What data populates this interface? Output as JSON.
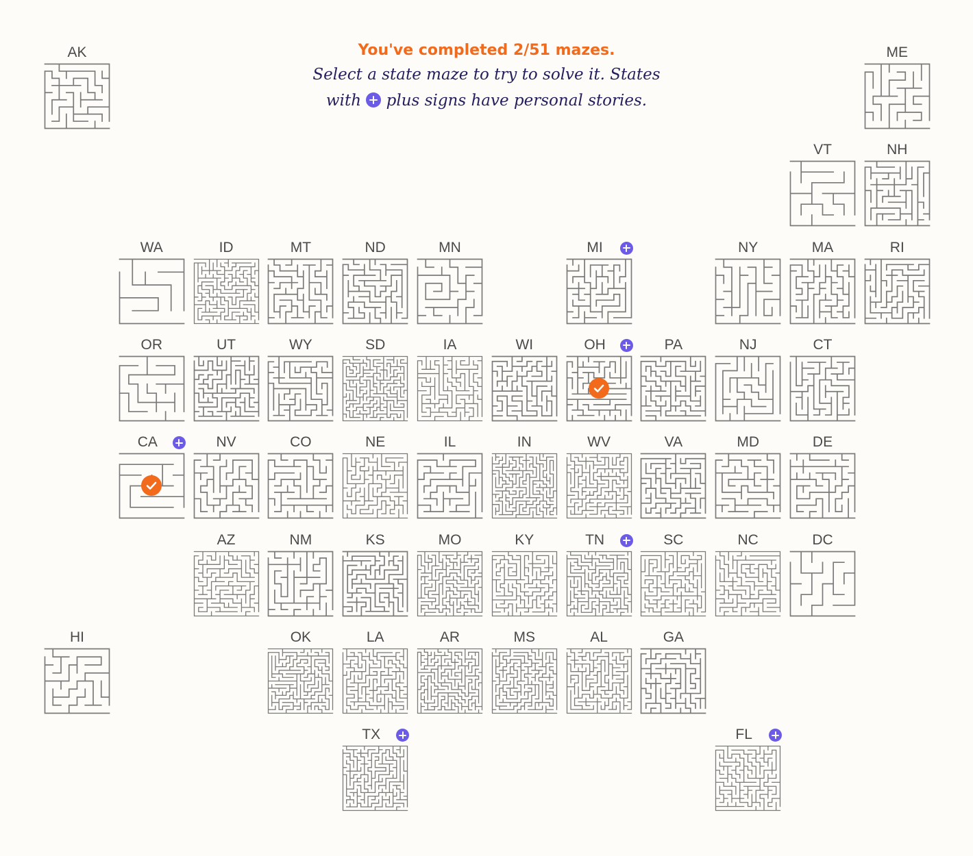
{
  "header": {
    "progress": "You've completed 2/51 mazes.",
    "instruction_line1": "Select a state maze to try to solve it. States",
    "instruction_line2_pre": "with",
    "instruction_line2_post": "plus signs have personal stories."
  },
  "colors": {
    "accent_orange": "#f26a1b",
    "story_purple": "#6b5be6",
    "maze_wall": "#7a7a7a",
    "text_navy": "#241f5c"
  },
  "states": [
    {
      "code": "AK",
      "story": false,
      "completed": false,
      "density": 9
    },
    {
      "code": "ME",
      "story": false,
      "completed": false,
      "density": 8
    },
    {
      "code": "VT",
      "story": false,
      "completed": false,
      "density": 6
    },
    {
      "code": "NH",
      "story": false,
      "completed": false,
      "density": 11
    },
    {
      "code": "WA",
      "story": false,
      "completed": false,
      "density": 5
    },
    {
      "code": "ID",
      "story": false,
      "completed": false,
      "density": 17
    },
    {
      "code": "MT",
      "story": false,
      "completed": false,
      "density": 11
    },
    {
      "code": "ND",
      "story": false,
      "completed": false,
      "density": 12
    },
    {
      "code": "MN",
      "story": false,
      "completed": false,
      "density": 8
    },
    {
      "code": "MI",
      "story": true,
      "completed": false,
      "density": 11
    },
    {
      "code": "NY",
      "story": false,
      "completed": false,
      "density": 8
    },
    {
      "code": "MA",
      "story": false,
      "completed": false,
      "density": 11
    },
    {
      "code": "RI",
      "story": false,
      "completed": false,
      "density": 12
    },
    {
      "code": "OR",
      "story": false,
      "completed": false,
      "density": 7
    },
    {
      "code": "UT",
      "story": false,
      "completed": false,
      "density": 14
    },
    {
      "code": "WY",
      "story": false,
      "completed": false,
      "density": 12
    },
    {
      "code": "SD",
      "story": false,
      "completed": false,
      "density": 19
    },
    {
      "code": "IA",
      "story": false,
      "completed": false,
      "density": 15
    },
    {
      "code": "WI",
      "story": false,
      "completed": false,
      "density": 13
    },
    {
      "code": "OH",
      "story": true,
      "completed": true,
      "density": 12
    },
    {
      "code": "PA",
      "story": false,
      "completed": false,
      "density": 13
    },
    {
      "code": "NJ",
      "story": false,
      "completed": false,
      "density": 9
    },
    {
      "code": "CT",
      "story": false,
      "completed": false,
      "density": 11
    },
    {
      "code": "CA",
      "story": true,
      "completed": true,
      "density": 6
    },
    {
      "code": "NV",
      "story": false,
      "completed": false,
      "density": 10
    },
    {
      "code": "CO",
      "story": false,
      "completed": false,
      "density": 10
    },
    {
      "code": "NE",
      "story": false,
      "completed": false,
      "density": 15
    },
    {
      "code": "IL",
      "story": false,
      "completed": false,
      "density": 10
    },
    {
      "code": "IN",
      "story": false,
      "completed": false,
      "density": 19
    },
    {
      "code": "WV",
      "story": false,
      "completed": false,
      "density": 17
    },
    {
      "code": "VA",
      "story": false,
      "completed": false,
      "density": 13
    },
    {
      "code": "MD",
      "story": false,
      "completed": false,
      "density": 10
    },
    {
      "code": "DE",
      "story": false,
      "completed": false,
      "density": 10
    },
    {
      "code": "AZ",
      "story": false,
      "completed": false,
      "density": 15
    },
    {
      "code": "NM",
      "story": false,
      "completed": false,
      "density": 10
    },
    {
      "code": "KS",
      "story": false,
      "completed": false,
      "density": 14
    },
    {
      "code": "MO",
      "story": false,
      "completed": false,
      "density": 18
    },
    {
      "code": "KY",
      "story": false,
      "completed": false,
      "density": 16
    },
    {
      "code": "TN",
      "story": true,
      "completed": false,
      "density": 18
    },
    {
      "code": "SC",
      "story": false,
      "completed": false,
      "density": 16
    },
    {
      "code": "NC",
      "story": false,
      "completed": false,
      "density": 15
    },
    {
      "code": "DC",
      "story": false,
      "completed": false,
      "density": 6
    },
    {
      "code": "HI",
      "story": false,
      "completed": false,
      "density": 8
    },
    {
      "code": "OK",
      "story": false,
      "completed": false,
      "density": 18
    },
    {
      "code": "LA",
      "story": false,
      "completed": false,
      "density": 17
    },
    {
      "code": "AR",
      "story": false,
      "completed": false,
      "density": 19
    },
    {
      "code": "MS",
      "story": false,
      "completed": false,
      "density": 18
    },
    {
      "code": "AL",
      "story": false,
      "completed": false,
      "density": 17
    },
    {
      "code": "GA",
      "story": false,
      "completed": false,
      "density": 13
    },
    {
      "code": "TX",
      "story": true,
      "completed": false,
      "density": 18
    },
    {
      "code": "FL",
      "story": true,
      "completed": false,
      "density": 16
    }
  ]
}
